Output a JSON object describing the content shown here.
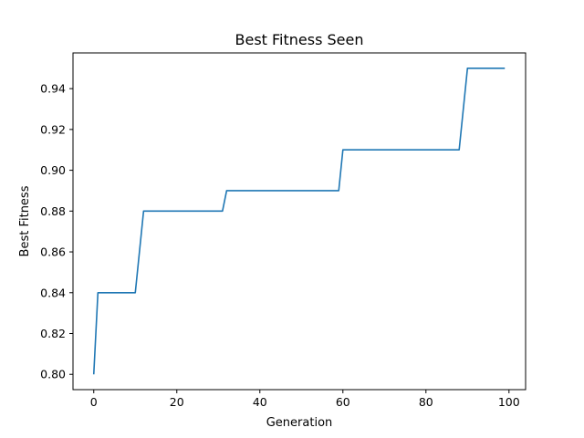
{
  "chart_data": {
    "type": "line",
    "title": "Best Fitness Seen",
    "xlabel": "Generation",
    "ylabel": "Best Fitness",
    "xlim": [
      -5,
      104
    ],
    "ylim": [
      0.7925,
      0.9575
    ],
    "xticks": [
      0,
      20,
      40,
      60,
      80,
      100
    ],
    "yticks": [
      0.8,
      0.82,
      0.84,
      0.86,
      0.88,
      0.9,
      0.92,
      0.94
    ],
    "grid": false,
    "line_color": "#1f77b4",
    "series": [
      {
        "x": [
          0,
          1,
          10,
          12,
          31,
          32,
          59,
          60,
          88,
          90,
          99
        ],
        "values": [
          0.8,
          0.84,
          0.84,
          0.88,
          0.88,
          0.89,
          0.89,
          0.91,
          0.91,
          0.95,
          0.95
        ]
      }
    ]
  }
}
